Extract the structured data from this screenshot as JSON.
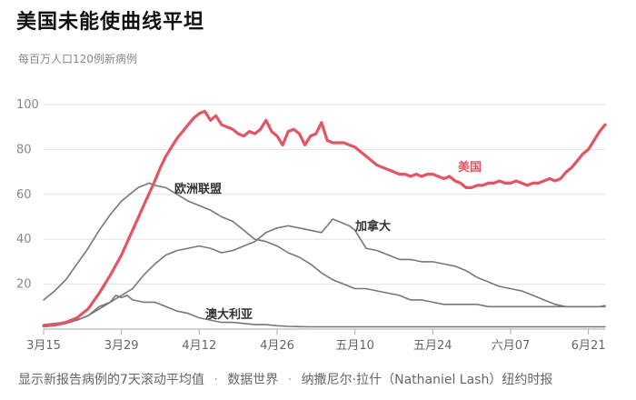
{
  "header": {
    "title": "美国未能使曲线平坦",
    "subtitle": "每百万人口120例新病例"
  },
  "footer": {
    "note": "显示新报告病例的7天滚动平均值",
    "source": "数据世界",
    "credit": "纳撒尼尔·拉什（Nathaniel Lash）纽约时报",
    "separator": "·"
  },
  "chart_data": {
    "type": "line",
    "ylim": [
      0,
      100
    ],
    "xlim": [
      0,
      101
    ],
    "grid": true,
    "x_ticks": [
      {
        "label": "3月15",
        "day": 0
      },
      {
        "label": "3月29",
        "day": 14
      },
      {
        "label": "4月12",
        "day": 28
      },
      {
        "label": "4月26",
        "day": 42
      },
      {
        "label": "五月10",
        "day": 56
      },
      {
        "label": "五月24",
        "day": 70
      },
      {
        "label": "六月07",
        "day": 84
      },
      {
        "label": "6月21",
        "day": 98
      }
    ],
    "y_ticks": [
      20,
      40,
      60,
      80,
      100
    ],
    "colors": {
      "us": "#e45563",
      "other": "#777777",
      "grid": "#e3e3e3",
      "axis": "#aaaaaa"
    },
    "series": [
      {
        "name": "美国",
        "color": "#e45563",
        "points": [
          [
            0,
            1.5
          ],
          [
            2,
            2
          ],
          [
            4,
            3
          ],
          [
            6,
            5
          ],
          [
            8,
            9
          ],
          [
            10,
            16
          ],
          [
            12,
            24
          ],
          [
            14,
            33
          ],
          [
            16,
            44
          ],
          [
            18,
            55
          ],
          [
            20,
            66
          ],
          [
            21,
            72
          ],
          [
            22,
            77
          ],
          [
            23,
            81
          ],
          [
            24,
            85
          ],
          [
            25,
            88
          ],
          [
            26,
            91
          ],
          [
            27,
            94
          ],
          [
            28,
            96
          ],
          [
            29,
            97
          ],
          [
            30,
            93
          ],
          [
            31,
            95
          ],
          [
            32,
            91
          ],
          [
            33,
            90
          ],
          [
            34,
            89
          ],
          [
            35,
            87
          ],
          [
            36,
            86
          ],
          [
            37,
            88
          ],
          [
            38,
            87
          ],
          [
            39,
            89
          ],
          [
            40,
            93
          ],
          [
            41,
            88
          ],
          [
            42,
            86
          ],
          [
            43,
            82
          ],
          [
            44,
            88
          ],
          [
            45,
            89
          ],
          [
            46,
            87
          ],
          [
            47,
            82
          ],
          [
            48,
            86
          ],
          [
            49,
            87
          ],
          [
            50,
            92
          ],
          [
            51,
            84
          ],
          [
            52,
            83
          ],
          [
            53,
            83
          ],
          [
            54,
            83
          ],
          [
            55,
            82
          ],
          [
            56,
            81
          ],
          [
            57,
            79
          ],
          [
            58,
            77
          ],
          [
            59,
            75
          ],
          [
            60,
            73
          ],
          [
            61,
            72
          ],
          [
            62,
            71
          ],
          [
            63,
            70
          ],
          [
            64,
            69
          ],
          [
            65,
            69
          ],
          [
            66,
            68
          ],
          [
            67,
            69
          ],
          [
            68,
            68
          ],
          [
            69,
            69
          ],
          [
            70,
            69
          ],
          [
            71,
            68
          ],
          [
            72,
            67
          ],
          [
            73,
            68
          ],
          [
            74,
            66
          ],
          [
            75,
            65
          ],
          [
            76,
            63
          ],
          [
            77,
            63
          ],
          [
            78,
            64
          ],
          [
            79,
            64
          ],
          [
            80,
            65
          ],
          [
            81,
            65
          ],
          [
            82,
            66
          ],
          [
            83,
            65
          ],
          [
            84,
            65
          ],
          [
            85,
            66
          ],
          [
            86,
            65
          ],
          [
            87,
            64
          ],
          [
            88,
            65
          ],
          [
            89,
            65
          ],
          [
            90,
            66
          ],
          [
            91,
            67
          ],
          [
            92,
            66
          ],
          [
            93,
            67
          ],
          [
            94,
            70
          ],
          [
            95,
            72
          ],
          [
            96,
            75
          ],
          [
            97,
            78
          ],
          [
            98,
            80
          ],
          [
            99,
            84
          ],
          [
            100,
            88
          ],
          [
            101,
            91
          ]
        ]
      },
      {
        "name": "欧洲联盟",
        "color": "#777777",
        "points": [
          [
            0,
            13
          ],
          [
            2,
            17
          ],
          [
            4,
            22
          ],
          [
            6,
            29
          ],
          [
            8,
            36
          ],
          [
            10,
            44
          ],
          [
            12,
            51
          ],
          [
            14,
            57
          ],
          [
            16,
            61
          ],
          [
            17,
            63
          ],
          [
            18,
            64
          ],
          [
            19,
            65
          ],
          [
            20,
            64
          ],
          [
            22,
            63
          ],
          [
            24,
            60
          ],
          [
            26,
            57
          ],
          [
            28,
            55
          ],
          [
            30,
            53
          ],
          [
            32,
            50
          ],
          [
            34,
            48
          ],
          [
            36,
            44
          ],
          [
            38,
            40
          ],
          [
            40,
            39
          ],
          [
            42,
            37
          ],
          [
            44,
            34
          ],
          [
            46,
            32
          ],
          [
            48,
            29
          ],
          [
            50,
            25
          ],
          [
            52,
            22
          ],
          [
            54,
            20
          ],
          [
            56,
            18
          ],
          [
            58,
            18
          ],
          [
            60,
            17
          ],
          [
            62,
            16
          ],
          [
            64,
            15
          ],
          [
            66,
            13
          ],
          [
            68,
            13
          ],
          [
            70,
            12
          ],
          [
            72,
            11
          ],
          [
            74,
            11
          ],
          [
            76,
            11
          ],
          [
            78,
            11
          ],
          [
            80,
            10
          ],
          [
            82,
            10
          ],
          [
            84,
            10
          ],
          [
            86,
            10
          ],
          [
            88,
            10
          ],
          [
            90,
            10
          ],
          [
            92,
            10
          ],
          [
            94,
            10
          ],
          [
            96,
            10
          ],
          [
            98,
            10
          ],
          [
            100,
            10
          ],
          [
            101,
            10.5
          ]
        ]
      },
      {
        "name": "加拿大",
        "color": "#777777",
        "points": [
          [
            0,
            2
          ],
          [
            2,
            2.5
          ],
          [
            4,
            3
          ],
          [
            6,
            4
          ],
          [
            8,
            6
          ],
          [
            10,
            10
          ],
          [
            12,
            12
          ],
          [
            14,
            15
          ],
          [
            16,
            18
          ],
          [
            18,
            24
          ],
          [
            20,
            29
          ],
          [
            22,
            33
          ],
          [
            24,
            35
          ],
          [
            26,
            36
          ],
          [
            28,
            37
          ],
          [
            30,
            36
          ],
          [
            32,
            34
          ],
          [
            34,
            35
          ],
          [
            36,
            37
          ],
          [
            38,
            39
          ],
          [
            40,
            43
          ],
          [
            42,
            45
          ],
          [
            44,
            46
          ],
          [
            46,
            45
          ],
          [
            48,
            44
          ],
          [
            50,
            43
          ],
          [
            51,
            46
          ],
          [
            52,
            49
          ],
          [
            53,
            48
          ],
          [
            54,
            47
          ],
          [
            55,
            46
          ],
          [
            56,
            44
          ],
          [
            57,
            40
          ],
          [
            58,
            36
          ],
          [
            60,
            35
          ],
          [
            62,
            33
          ],
          [
            64,
            31
          ],
          [
            66,
            31
          ],
          [
            68,
            30
          ],
          [
            70,
            30
          ],
          [
            72,
            29
          ],
          [
            74,
            28
          ],
          [
            76,
            26
          ],
          [
            78,
            23
          ],
          [
            80,
            21
          ],
          [
            82,
            19
          ],
          [
            84,
            18
          ],
          [
            86,
            17
          ],
          [
            88,
            15
          ],
          [
            90,
            13
          ],
          [
            92,
            11
          ],
          [
            94,
            10
          ],
          [
            96,
            10
          ],
          [
            98,
            10
          ],
          [
            100,
            10
          ],
          [
            101,
            10
          ]
        ]
      },
      {
        "name": "澳大利亚",
        "color": "#777777",
        "points": [
          [
            0,
            1
          ],
          [
            2,
            1.5
          ],
          [
            4,
            2.5
          ],
          [
            6,
            4
          ],
          [
            8,
            6
          ],
          [
            10,
            9
          ],
          [
            12,
            12
          ],
          [
            13,
            15
          ],
          [
            14,
            14
          ],
          [
            15,
            15
          ],
          [
            16,
            13
          ],
          [
            18,
            12
          ],
          [
            20,
            12
          ],
          [
            22,
            10
          ],
          [
            24,
            8
          ],
          [
            26,
            7
          ],
          [
            28,
            5
          ],
          [
            30,
            4
          ],
          [
            32,
            3
          ],
          [
            34,
            3
          ],
          [
            36,
            2.5
          ],
          [
            38,
            2
          ],
          [
            40,
            2
          ],
          [
            42,
            1.5
          ],
          [
            44,
            1.2
          ],
          [
            46,
            1.1
          ],
          [
            48,
            1
          ],
          [
            52,
            1
          ],
          [
            56,
            1
          ],
          [
            60,
            1
          ],
          [
            64,
            1
          ],
          [
            68,
            1
          ],
          [
            72,
            1
          ],
          [
            76,
            1
          ],
          [
            80,
            1
          ],
          [
            84,
            1
          ],
          [
            88,
            1
          ],
          [
            92,
            1
          ],
          [
            96,
            1
          ],
          [
            100,
            1
          ],
          [
            101,
            1
          ]
        ]
      }
    ],
    "labels": [
      {
        "text": "美国",
        "series": "美国"
      },
      {
        "text": "欧洲联盟",
        "series": "欧洲联盟"
      },
      {
        "text": "加拿大",
        "series": "加拿大"
      },
      {
        "text": "澳大利亚",
        "series": "澳大利亚"
      }
    ]
  }
}
